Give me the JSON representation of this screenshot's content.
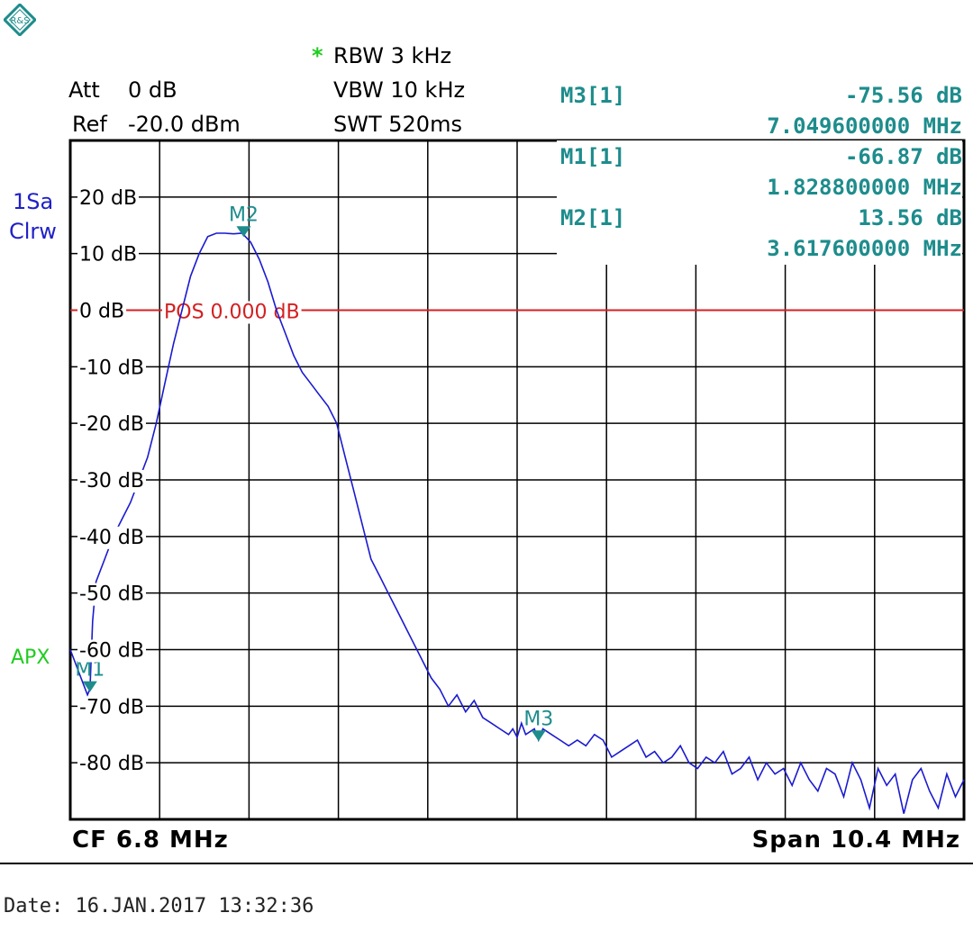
{
  "header": {
    "att_label": "Att",
    "att_value": "0 dB",
    "ref_label": "Ref",
    "ref_value": "-20.0 dBm",
    "rbw_star": "*",
    "rbw": "RBW 3 kHz",
    "vbw": "VBW 10 kHz",
    "swt": "SWT 520ms"
  },
  "trace_info": {
    "line1": "1Sa",
    "line2": "Clrw",
    "apx": "APX"
  },
  "marker_table": [
    {
      "name": "M3[1]",
      "level": "-75.56 dB",
      "freq": "7.049600000 MHz"
    },
    {
      "name": "M1[1]",
      "level": "-66.87 dB",
      "freq": "1.828800000 MHz"
    },
    {
      "name": "M2[1]",
      "level": "13.56 dB",
      "freq": "3.617600000 MHz"
    }
  ],
  "footer": {
    "cf": "CF 6.8 MHz",
    "span": "Span 10.4 MHz"
  },
  "date": "Date: 16.JAN.2017  13:32:36",
  "colors": {
    "trace": "#1a1ad0",
    "marker": "#1e8c8c",
    "ref_line": "#d42020",
    "grid": "#000000",
    "apx": "#20cc20",
    "star": "#20cc20"
  },
  "chart_data": {
    "type": "line",
    "x_unit": "MHz",
    "y_unit": "dB",
    "xlim": [
      1.6,
      12.0
    ],
    "ylim": [
      -90,
      30
    ],
    "ytick_labels": [
      "20 dB",
      "10 dB",
      "0 dB",
      "-10 dB",
      "-20 dB",
      "-30 dB",
      "-40 dB",
      "-50 dB",
      "-60 dB",
      "-70 dB",
      "-80 dB"
    ],
    "ytick_values": [
      20,
      10,
      0,
      -10,
      -20,
      -30,
      -40,
      -50,
      -60,
      -70,
      -80
    ],
    "reference_line": {
      "value": 0,
      "label": "POS  0.000 dB"
    },
    "markers": [
      {
        "label": "M1",
        "x": 1.8288,
        "y": -66.87
      },
      {
        "label": "M2",
        "x": 3.6176,
        "y": 13.56
      },
      {
        "label": "M3",
        "x": 7.0496,
        "y": -75.56
      }
    ],
    "series": [
      {
        "x": [
          1.6,
          1.65,
          1.7,
          1.75,
          1.8,
          1.83,
          1.86,
          1.9,
          2.0,
          2.1,
          2.2,
          2.3,
          2.4,
          2.5,
          2.6,
          2.7,
          2.8,
          2.9,
          3.0,
          3.1,
          3.2,
          3.3,
          3.4,
          3.5,
          3.6,
          3.7,
          3.8,
          3.9,
          4.0,
          4.1,
          4.2,
          4.3,
          4.4,
          4.5,
          4.6,
          4.7,
          4.8,
          4.9,
          5.0,
          5.1,
          5.2,
          5.3,
          5.4,
          5.5,
          5.6,
          5.7,
          5.8,
          5.9,
          6.0,
          6.1,
          6.2,
          6.3,
          6.4,
          6.5,
          6.6,
          6.7,
          6.75,
          6.8,
          6.85,
          6.9,
          7.0,
          7.05,
          7.1,
          7.2,
          7.3,
          7.4,
          7.5,
          7.6,
          7.7,
          7.8,
          7.9,
          8.0,
          8.1,
          8.2,
          8.3,
          8.4,
          8.5,
          8.6,
          8.7,
          8.8,
          8.9,
          9.0,
          9.1,
          9.2,
          9.3,
          9.4,
          9.5,
          9.6,
          9.7,
          9.8,
          9.9,
          10.0,
          10.1,
          10.2,
          10.3,
          10.4,
          10.5,
          10.6,
          10.7,
          10.8,
          10.9,
          11.0,
          11.1,
          11.2,
          11.3,
          11.4,
          11.5,
          11.6,
          11.7,
          11.8,
          11.9,
          12.0
        ],
        "y": [
          -60,
          -62,
          -64,
          -66,
          -68,
          -66.9,
          -55,
          -48,
          -44,
          -40,
          -37,
          -34,
          -30,
          -26,
          -20,
          -13,
          -6,
          0,
          6,
          10,
          13,
          13.6,
          13.6,
          13.5,
          13.6,
          12,
          9,
          5,
          0,
          -4,
          -8,
          -11,
          -13,
          -15,
          -17,
          -20,
          -26,
          -32,
          -38,
          -44,
          -47,
          -50,
          -53,
          -56,
          -59,
          -62,
          -65,
          -67,
          -70,
          -68,
          -71,
          -69,
          -72,
          -73,
          -74,
          -75,
          -74,
          -75.5,
          -73,
          -75,
          -74,
          -76,
          -74,
          -75,
          -76,
          -77,
          -76,
          -77,
          -75,
          -76,
          -79,
          -78,
          -77,
          -76,
          -79,
          -78,
          -80,
          -79,
          -77,
          -80,
          -81,
          -79,
          -80,
          -78,
          -82,
          -81,
          -79,
          -83,
          -80,
          -82,
          -81,
          -84,
          -80,
          -83,
          -85,
          -81,
          -82,
          -86,
          -80,
          -83,
          -88,
          -81,
          -84,
          -82,
          -89,
          -83,
          -81,
          -85,
          -88,
          -82,
          -86,
          -83
        ]
      }
    ]
  }
}
